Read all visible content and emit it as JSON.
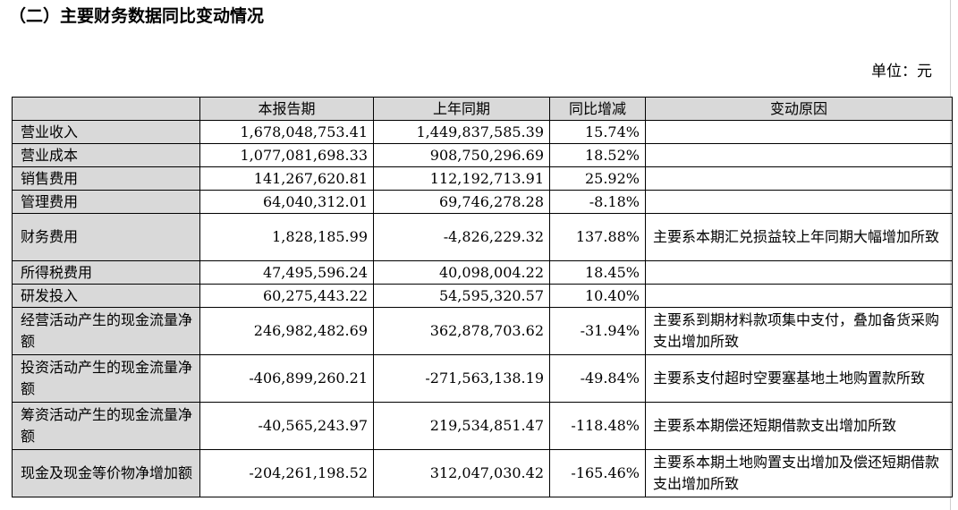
{
  "title": "（二）主要财务数据同比变动情况",
  "unit": "单位：元",
  "table": {
    "headers": [
      "",
      "本报告期",
      "上年同期",
      "同比增减",
      "变动原因"
    ],
    "rows": [
      {
        "item": "营业收入",
        "current": "1,678,048,753.41",
        "prior": "1,449,837,585.39",
        "change": "15.74%",
        "reason": ""
      },
      {
        "item": "营业成本",
        "current": "1,077,081,698.33",
        "prior": "908,750,296.69",
        "change": "18.52%",
        "reason": ""
      },
      {
        "item": "销售费用",
        "current": "141,267,620.81",
        "prior": "112,192,713.91",
        "change": "25.92%",
        "reason": ""
      },
      {
        "item": "管理费用",
        "current": "64,040,312.01",
        "prior": "69,746,278.28",
        "change": "-8.18%",
        "reason": ""
      },
      {
        "item": "财务费用",
        "current": "1,828,185.99",
        "prior": "-4,826,229.32",
        "change": "137.88%",
        "reason": "主要系本期汇兑损益较上年同期大幅增加所致"
      },
      {
        "item": "所得税费用",
        "current": "47,495,596.24",
        "prior": "40,098,004.22",
        "change": "18.45%",
        "reason": ""
      },
      {
        "item": "研发投入",
        "current": "60,275,443.22",
        "prior": "54,595,320.57",
        "change": "10.40%",
        "reason": ""
      },
      {
        "item": "经营活动产生的现金流量净额",
        "current": "246,982,482.69",
        "prior": "362,878,703.62",
        "change": "-31.94%",
        "reason": "主要系到期材料款项集中支付，叠加备货采购支出增加所致"
      },
      {
        "item": "投资活动产生的现金流量净额",
        "current": "-406,899,260.21",
        "prior": "-271,563,138.19",
        "change": "-49.84%",
        "reason": "主要系支付超时空要塞基地土地购置款所致"
      },
      {
        "item": "筹资活动产生的现金流量净额",
        "current": "-40,565,243.97",
        "prior": "219,534,851.47",
        "change": "-118.48%",
        "reason": "主要系本期偿还短期借款支出增加所致"
      },
      {
        "item": "现金及现金等价物净增加额",
        "current": "-204,261,198.52",
        "prior": "312,047,030.42",
        "change": "-165.46%",
        "reason": "主要系本期土地购置支出增加及偿还短期借款支出增加所致"
      }
    ]
  }
}
